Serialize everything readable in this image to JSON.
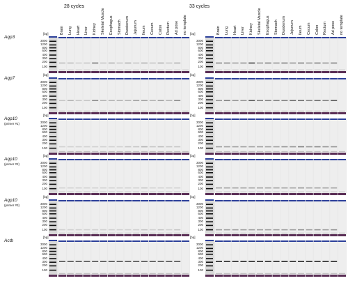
{
  "panels": [
    {
      "cycle_label": "28 cycles"
    },
    {
      "cycle_label": "33 cycles"
    }
  ],
  "lanes": [
    "Brain",
    "Lung",
    "Heart",
    "Liver",
    "Kidney",
    "Skeletal Muscle",
    "Esophagus",
    "Stomach",
    "Duodenum",
    "Jejunum",
    "Ileum",
    "Cecum",
    "Colon",
    "Rectum",
    "Ad pose",
    "no template"
  ],
  "unit_labels": [
    "[bp]",
    "[bp]"
  ],
  "ladder_sizes": [
    "3000",
    "1200",
    "800",
    "600",
    "400",
    "300",
    "200",
    "100"
  ],
  "rows": [
    {
      "name": "Aqp3",
      "sub": ""
    },
    {
      "name": "Aqp7",
      "sub": ""
    },
    {
      "name": "Aqp10",
      "sub": "(primer #1)"
    },
    {
      "name": "Aqp10",
      "sub": "(primer #2)"
    },
    {
      "name": "Aqp10",
      "sub": "(primer #3)"
    },
    {
      "name": "Actb",
      "sub": ""
    }
  ],
  "colors": {
    "gel_bg": "#e6e6e6",
    "lane_bg": "#eeeeee",
    "top_band": "#2b3f9a",
    "bottom_band": "#5a2e55",
    "band": "#2a2a2a"
  }
}
